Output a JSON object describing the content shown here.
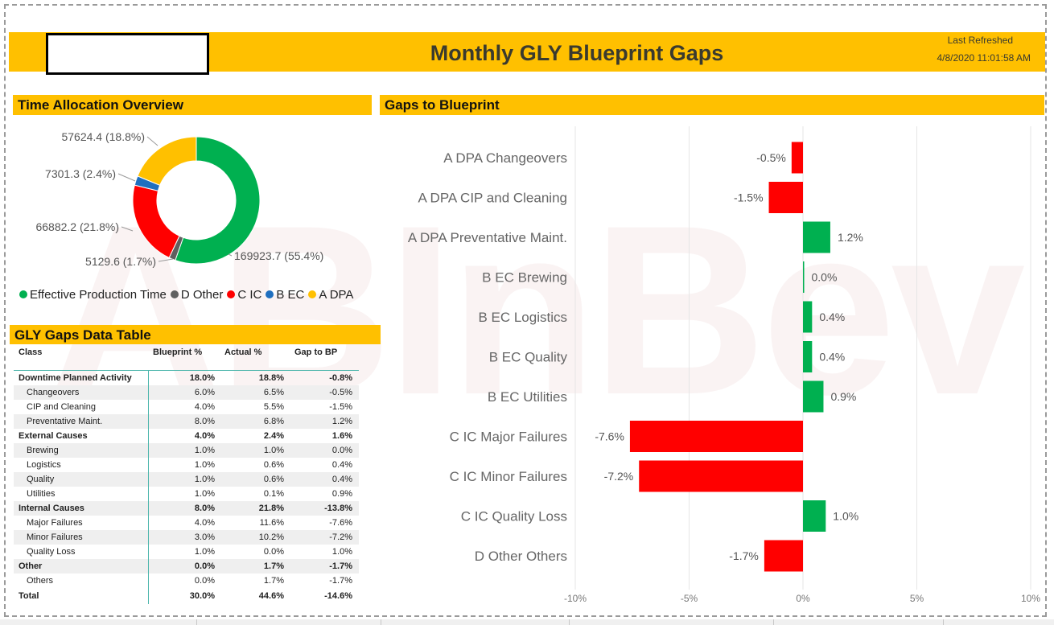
{
  "header": {
    "title": "Monthly GLY Blueprint Gaps",
    "last_refreshed_label": "Last Refreshed",
    "last_refreshed_time": "4/8/2020 11:01:58 AM"
  },
  "watermark_text": "ABInBev",
  "sections": {
    "time_allocation": "Time Allocation Overview",
    "gaps_to_blueprint": "Gaps to Blueprint",
    "data_table": "GLY Gaps Data Table"
  },
  "donut": {
    "slices": [
      {
        "name": "Effective Production Time",
        "value": 169923.7,
        "label": "169923.7 (55.4%)",
        "color": "#00b050"
      },
      {
        "name": "D Other",
        "value": 5129.6,
        "label": "5129.6 (1.7%)",
        "color": "#5f5f5f"
      },
      {
        "name": "C IC",
        "value": 66882.2,
        "label": "66882.2 (21.8%)",
        "color": "#ff0000"
      },
      {
        "name": "B EC",
        "value": 7301.3,
        "label": "7301.3 (2.4%)",
        "color": "#1f6fbf"
      },
      {
        "name": "A DPA",
        "value": 57624.4,
        "label": "57624.4 (18.8%)",
        "color": "#ffc000"
      }
    ]
  },
  "table": {
    "headers": [
      "Class",
      "Blueprint %",
      "Actual %",
      "Gap to BP"
    ],
    "rows": [
      {
        "cells": [
          "Downtime Planned Activity",
          "18.0%",
          "18.8%",
          "-0.8%"
        ]
      },
      {
        "cells": [
          "Changeovers",
          "6.0%",
          "6.5%",
          "-0.5%"
        ]
      },
      {
        "cells": [
          "CIP and Cleaning",
          "4.0%",
          "5.5%",
          "-1.5%"
        ]
      },
      {
        "cells": [
          "Preventative Maint.",
          "8.0%",
          "6.8%",
          "1.2%"
        ]
      },
      {
        "cells": [
          "External Causes",
          "4.0%",
          "2.4%",
          "1.6%"
        ]
      },
      {
        "cells": [
          "Brewing",
          "1.0%",
          "1.0%",
          "0.0%"
        ]
      },
      {
        "cells": [
          "Logistics",
          "1.0%",
          "0.6%",
          "0.4%"
        ]
      },
      {
        "cells": [
          "Quality",
          "1.0%",
          "0.6%",
          "0.4%"
        ]
      },
      {
        "cells": [
          "Utilities",
          "1.0%",
          "0.1%",
          "0.9%"
        ]
      },
      {
        "cells": [
          "Internal Causes",
          "8.0%",
          "21.8%",
          "-13.8%"
        ]
      },
      {
        "cells": [
          "Major Failures",
          "4.0%",
          "11.6%",
          "-7.6%"
        ]
      },
      {
        "cells": [
          "Minor Failures",
          "3.0%",
          "10.2%",
          "-7.2%"
        ]
      },
      {
        "cells": [
          "Quality Loss",
          "1.0%",
          "0.0%",
          "1.0%"
        ]
      },
      {
        "cells": [
          "Other",
          "0.0%",
          "1.7%",
          "-1.7%"
        ]
      },
      {
        "cells": [
          "Others",
          "0.0%",
          "1.7%",
          "-1.7%"
        ]
      },
      {
        "cells": [
          "Total",
          "30.0%",
          "44.6%",
          "-14.6%"
        ]
      }
    ]
  },
  "chart_data": {
    "type": "bar",
    "orientation": "horizontal",
    "categories": [
      "A DPA Changeovers",
      "A DPA CIP and Cleaning",
      "A DPA Preventative Maint.",
      "B EC Brewing",
      "B EC Logistics",
      "B EC Quality",
      "B EC Utilities",
      "C IC Major Failures",
      "C IC Minor Failures",
      "C IC Quality Loss",
      "D Other Others"
    ],
    "values": [
      -0.5,
      -1.5,
      1.2,
      0.0,
      0.4,
      0.4,
      0.9,
      -7.6,
      -7.2,
      1.0,
      -1.7
    ],
    "data_labels": [
      "-0.5%",
      "-1.5%",
      "1.2%",
      "0.0%",
      "0.4%",
      "0.4%",
      "0.9%",
      "-7.6%",
      "-7.2%",
      "1.0%",
      "-1.7%"
    ],
    "xlim": [
      -10,
      10
    ],
    "x_ticks": [
      -10,
      -5,
      0,
      5,
      10
    ],
    "x_tick_labels": [
      "-10%",
      "-5%",
      "0%",
      "5%",
      "10%"
    ],
    "grid": true,
    "positive_color": "#00b050",
    "negative_color": "#ff0000",
    "title": "",
    "xlabel": "",
    "ylabel": ""
  }
}
